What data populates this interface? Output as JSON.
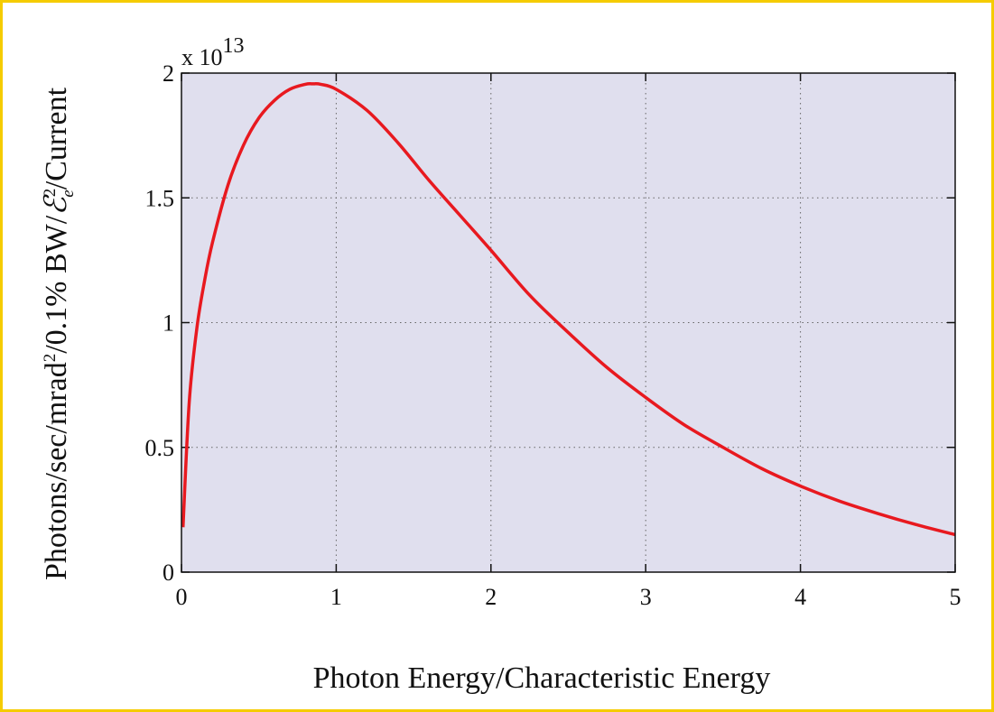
{
  "colors": {
    "frame": "#f5cc00",
    "plot_background": "#e0dfee",
    "line": "#e8191f",
    "grid": "#666666"
  },
  "chart_data": {
    "type": "line",
    "title": "",
    "xlabel": "Photon Energy/Characteristic Energy",
    "ylabel": {
      "prefix": "Photons/sec/mrad",
      "prefix_sup": "2",
      "middle": "/0.1% BW/",
      "symbol": "ℰ",
      "symbol_sup": "2",
      "symbol_sub": "e",
      "suffix": "/Current"
    },
    "y_multiplier": {
      "base": "x 10",
      "exponent": "13"
    },
    "xlim": [
      0,
      5
    ],
    "ylim": [
      0,
      2
    ],
    "x_ticks": [
      "0",
      "1",
      "2",
      "3",
      "4",
      "5"
    ],
    "y_ticks": [
      "0",
      "0.5",
      "1",
      "1.5",
      "2"
    ],
    "x_tick_values": [
      0,
      1,
      2,
      3,
      4,
      5
    ],
    "y_tick_values": [
      0,
      0.5,
      1,
      1.5,
      2
    ],
    "grid": true,
    "series": [
      {
        "x": [
          0.01,
          0.05,
          0.1,
          0.15,
          0.2,
          0.3,
          0.4,
          0.5,
          0.6,
          0.7,
          0.8,
          0.85,
          0.9,
          1.0,
          1.2,
          1.4,
          1.6,
          1.8,
          2.0,
          2.25,
          2.5,
          2.75,
          3.0,
          3.25,
          3.5,
          3.75,
          4.0,
          4.25,
          4.5,
          4.75,
          5.0
        ],
        "y": [
          0.18,
          0.68,
          0.98,
          1.17,
          1.32,
          1.55,
          1.71,
          1.82,
          1.89,
          1.935,
          1.955,
          1.957,
          1.955,
          1.935,
          1.85,
          1.72,
          1.57,
          1.43,
          1.29,
          1.11,
          0.96,
          0.82,
          0.7,
          0.59,
          0.5,
          0.415,
          0.345,
          0.285,
          0.235,
          0.19,
          0.15
        ]
      }
    ]
  }
}
